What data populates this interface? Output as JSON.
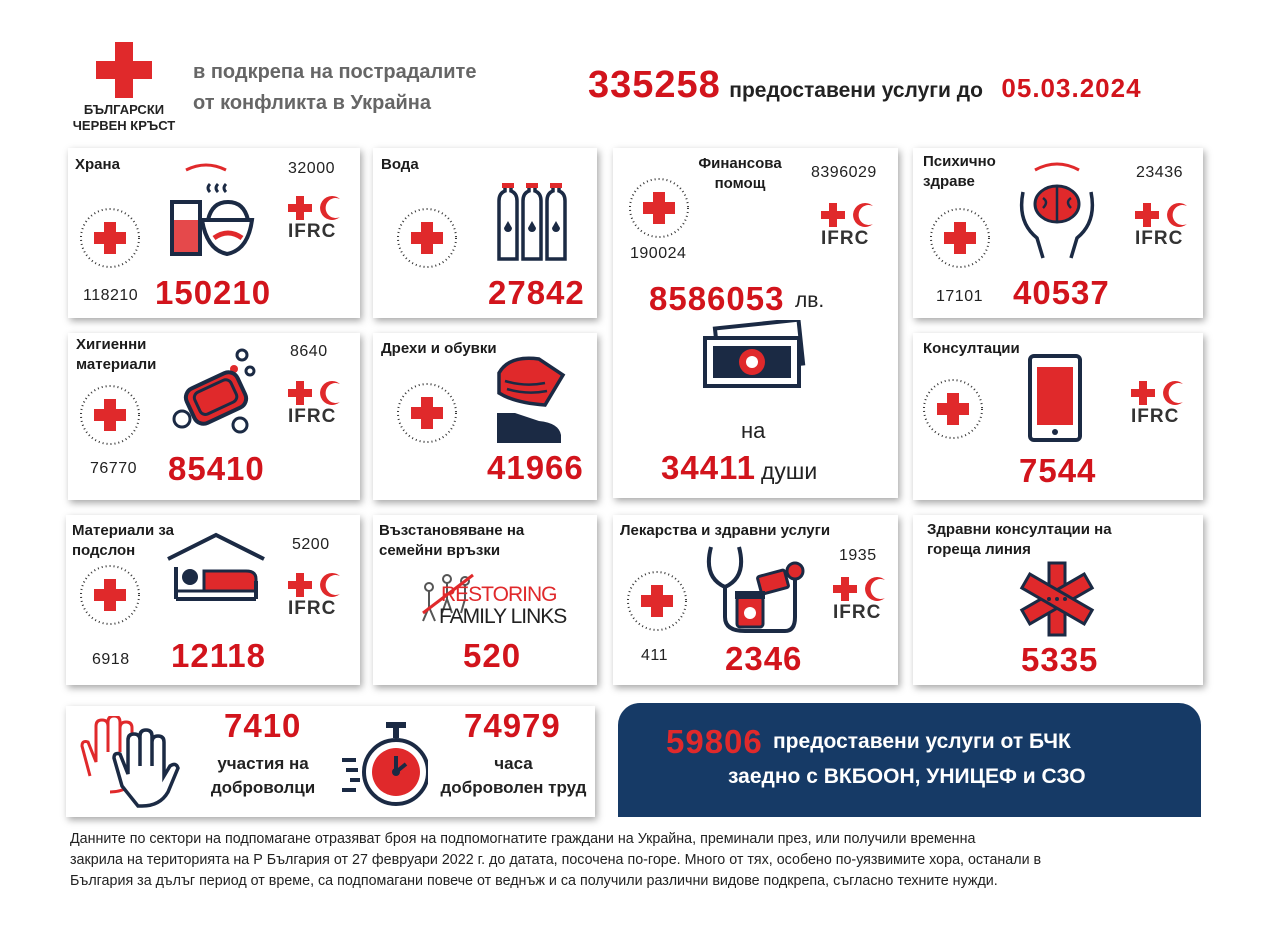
{
  "header": {
    "org_line1": "БЪЛГАРСКИ",
    "org_line2": "ЧЕРВЕН КРЪСТ",
    "subtitle_line1": "в подкрепа на пострадалите",
    "subtitle_line2": "от конфликта в Украйна",
    "total": "335258",
    "total_label": "предоставени услуги до",
    "date": "05.03.2024"
  },
  "logos": {
    "ifrc": "IFRC",
    "stamp_text": "БЪЛГАРСКИ ЧЕРВЕН КРЪСТ · BULGARIAN RED CROSS"
  },
  "cards": {
    "food": {
      "title": "Храна",
      "brc": "118210",
      "ifrc": "32000",
      "total": "150210"
    },
    "water": {
      "title": "Вода",
      "total": "27842"
    },
    "finance": {
      "title_line1": "Финансова",
      "title_line2": "помощ",
      "brc": "190024",
      "ifrc": "8396029",
      "total": "8586053",
      "currency": "лв.",
      "on": "на",
      "people": "34411",
      "people_label": "души"
    },
    "mental": {
      "title_line1": "Психично",
      "title_line2": "здраве",
      "brc": "17101",
      "ifrc": "23436",
      "total": "40537"
    },
    "hygiene": {
      "title_line1": "Хигиенни",
      "title_line2": "материали",
      "brc": "76770",
      "ifrc": "8640",
      "total": "85410"
    },
    "clothes": {
      "title": "Дрехи и обувки",
      "total": "41966"
    },
    "consult": {
      "title": "Консултации",
      "total": "7544"
    },
    "shelter": {
      "title_line1": "Материали за",
      "title_line2": "подслон",
      "brc": "6918",
      "ifrc": "5200",
      "total": "12118"
    },
    "rfl": {
      "title_line1": "Възстановяване на",
      "title_line2": "семейни връзки",
      "logo_line1": "RESTORING",
      "logo_line2": "FAMILY LINKS",
      "total": "520"
    },
    "meds": {
      "title": "Лекарства и здравни услуги",
      "brc": "411",
      "ifrc": "1935",
      "total": "2346"
    },
    "hotline": {
      "title_line1": "Здравни консултации на",
      "title_line2": "гореща линия",
      "total": "5335"
    }
  },
  "volunteers": {
    "participations": "7410",
    "participations_line1": "участия на",
    "participations_line2": "доброволци",
    "hours": "74979",
    "hours_line1": "часа",
    "hours_line2": "доброволен труд"
  },
  "partners": {
    "total": "59806",
    "line1": "предоставени услуги от БЧК",
    "line2": "заедно с ВКБООН, УНИЦЕФ и СЗО"
  },
  "footnote": {
    "line1": "Данните по сектори на подпомагане отразяват броя на подпомогнатите граждани на Украйна, преминали през, или получили временна",
    "line2": "закрила на територията на Р България от 27 февруари 2022 г. до датата, посочена по-горе. Много от тях, особено по-уязвимите хора, останали в",
    "line3": "България за дълъг период от време, са подпомагани повече от веднъж и са получили различни видове подкрепа, съгласно техните нужди."
  },
  "colors": {
    "red": "#d2141c",
    "navy": "#163a66",
    "cross": "#e0292b"
  }
}
